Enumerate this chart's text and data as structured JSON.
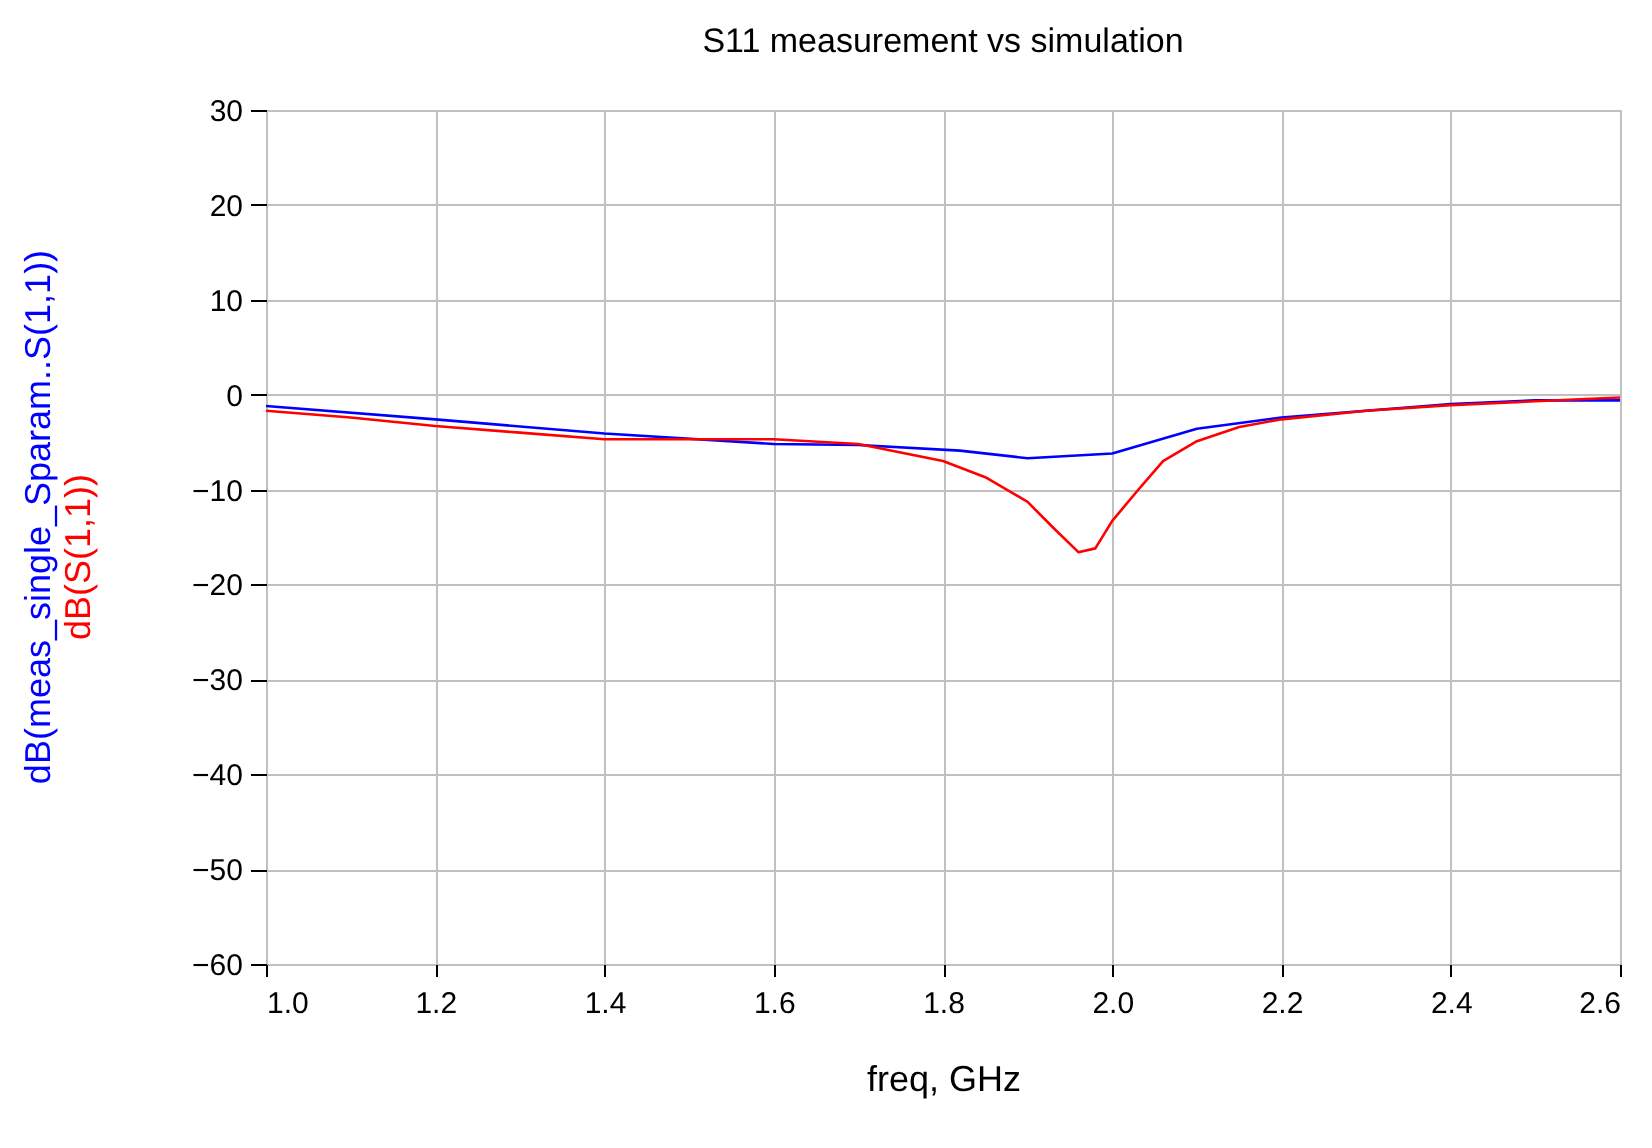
{
  "chart_data": {
    "type": "line",
    "title": "S11 measurement vs simulation",
    "xlabel": "freq, GHz",
    "xlim": [
      1.0,
      2.6
    ],
    "xticks": [
      {
        "value": 1.0,
        "label": "1.0"
      },
      1.2,
      1.4,
      1.6,
      1.8,
      {
        "value": 2.0,
        "label": "2.0"
      },
      2.2,
      2.4,
      2.6
    ],
    "ylim": [
      -60,
      30
    ],
    "yticks": [
      -60,
      -50,
      -40,
      -30,
      -20,
      -10,
      0,
      10,
      20,
      30
    ],
    "grid": true,
    "legend": false,
    "marker": "none",
    "line_style": "solid",
    "series": [
      {
        "name": "dB(meas_single_Sparam..S(1,1))",
        "color": "#0000ff",
        "x": [
          1.0,
          1.2,
          1.4,
          1.6,
          1.7,
          1.82,
          1.9,
          2.0,
          2.1,
          2.2,
          2.3,
          2.4,
          2.5,
          2.6
        ],
        "values": [
          -1.2,
          -2.6,
          -4.1,
          -5.2,
          -5.3,
          -5.9,
          -6.7,
          -6.2,
          -3.6,
          -2.4,
          -1.7,
          -1.0,
          -0.6,
          -0.6
        ]
      },
      {
        "name": "dB(S(1,1))",
        "color": "#ff0000",
        "x": [
          1.0,
          1.1,
          1.2,
          1.3,
          1.4,
          1.5,
          1.6,
          1.7,
          1.8,
          1.85,
          1.9,
          1.93,
          1.96,
          1.98,
          2.0,
          2.03,
          2.06,
          2.1,
          2.15,
          2.2,
          2.3,
          2.4,
          2.5,
          2.6
        ],
        "values": [
          -1.7,
          -2.4,
          -3.3,
          -4.0,
          -4.7,
          -4.7,
          -4.7,
          -5.2,
          -7.0,
          -8.7,
          -11.3,
          -14.0,
          -16.6,
          -16.2,
          -13.3,
          -10.1,
          -7.0,
          -4.9,
          -3.4,
          -2.6,
          -1.7,
          -1.1,
          -0.7,
          -0.3
        ]
      }
    ]
  }
}
